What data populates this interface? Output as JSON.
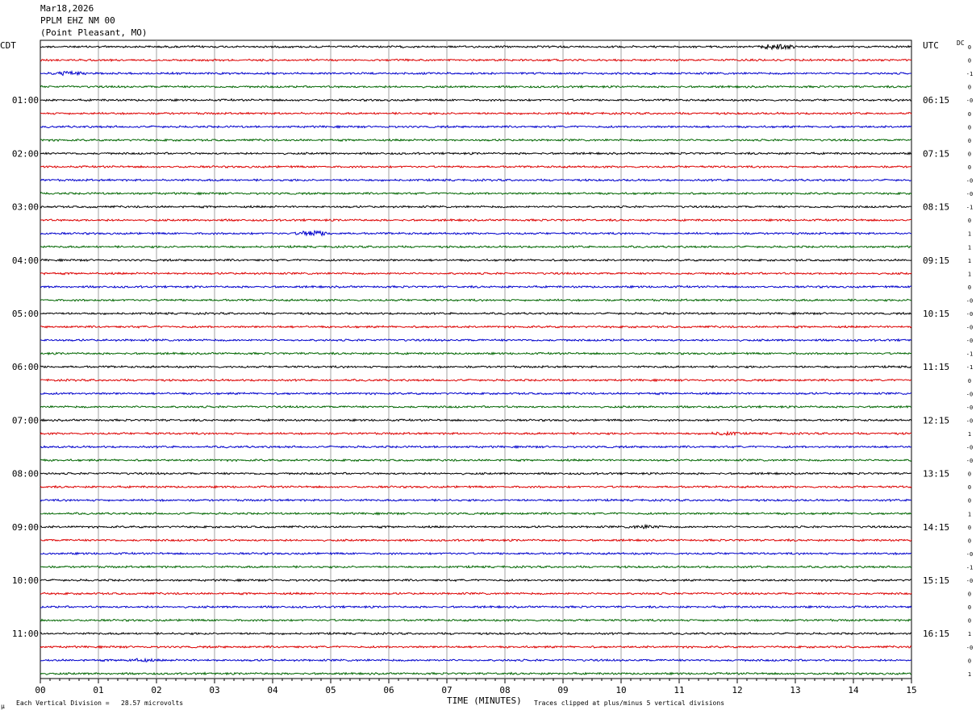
{
  "header": {
    "date": "Mar18,2026",
    "station": "PPLM EHZ NM 00",
    "location": "(Point Pleasant, MO)"
  },
  "left_zone": "CDT",
  "right_zone": "UTC",
  "dc_label": "DC",
  "footer": {
    "scale_mark": "μ",
    "division_note": "Each Vertical Division =   28.57 microvolts",
    "x_title": "TIME (MINUTES)",
    "clip_note": "Traces clipped at plus/minus 5 vertical divisions"
  },
  "colors": {
    "trace_cycle": [
      "#000000",
      "#dd0000",
      "#0000cc",
      "#006600"
    ],
    "grid": "#a0a0a0"
  },
  "chart_data": {
    "type": "line",
    "title": "",
    "xlabel": "TIME (MINUTES)",
    "ylabel": "",
    "xlim": [
      0,
      15
    ],
    "x_ticks": [
      "00",
      "01",
      "02",
      "03",
      "04",
      "05",
      "06",
      "07",
      "08",
      "09",
      "10",
      "11",
      "12",
      "13",
      "14",
      "15"
    ],
    "left_hour_labels": [
      "01:00",
      "02:00",
      "03:00",
      "04:00",
      "05:00",
      "06:00",
      "07:00",
      "08:00",
      "09:00",
      "10:00",
      "11:00"
    ],
    "right_hour_labels": [
      "06:15",
      "07:15",
      "08:15",
      "09:15",
      "10:15",
      "11:15",
      "12:15",
      "13:15",
      "14:15",
      "15:15",
      "16:15"
    ],
    "trace_count": 48,
    "dc_offsets": [
      "0",
      "0",
      "-1",
      "0",
      "-0",
      "0",
      "0",
      "0",
      "0",
      "0",
      "-0",
      "-0",
      "-1",
      "0",
      "1",
      "1",
      "1",
      "1",
      "0",
      "-0",
      "-0",
      "-0",
      "-0",
      "-1",
      "-1",
      "0",
      "-0",
      "-0",
      "-0",
      "1",
      "-0",
      "-0",
      "0",
      "0",
      "0",
      "1",
      "0",
      "0",
      "-0",
      "-1",
      "-0",
      "0",
      "0",
      "0",
      "1",
      "-0",
      "0",
      "1"
    ],
    "events": [
      {
        "trace": 0,
        "minute": 12.7,
        "amplitude": 3.2
      },
      {
        "trace": 2,
        "minute": 0.5,
        "amplitude": 2.2
      },
      {
        "trace": 14,
        "minute": 4.7,
        "amplitude": 3.4
      },
      {
        "trace": 29,
        "minute": 11.8,
        "amplitude": 1.6
      },
      {
        "trace": 36,
        "minute": 10.4,
        "amplitude": 1.6
      },
      {
        "trace": 46,
        "minute": 1.7,
        "amplitude": 1.3
      }
    ]
  }
}
